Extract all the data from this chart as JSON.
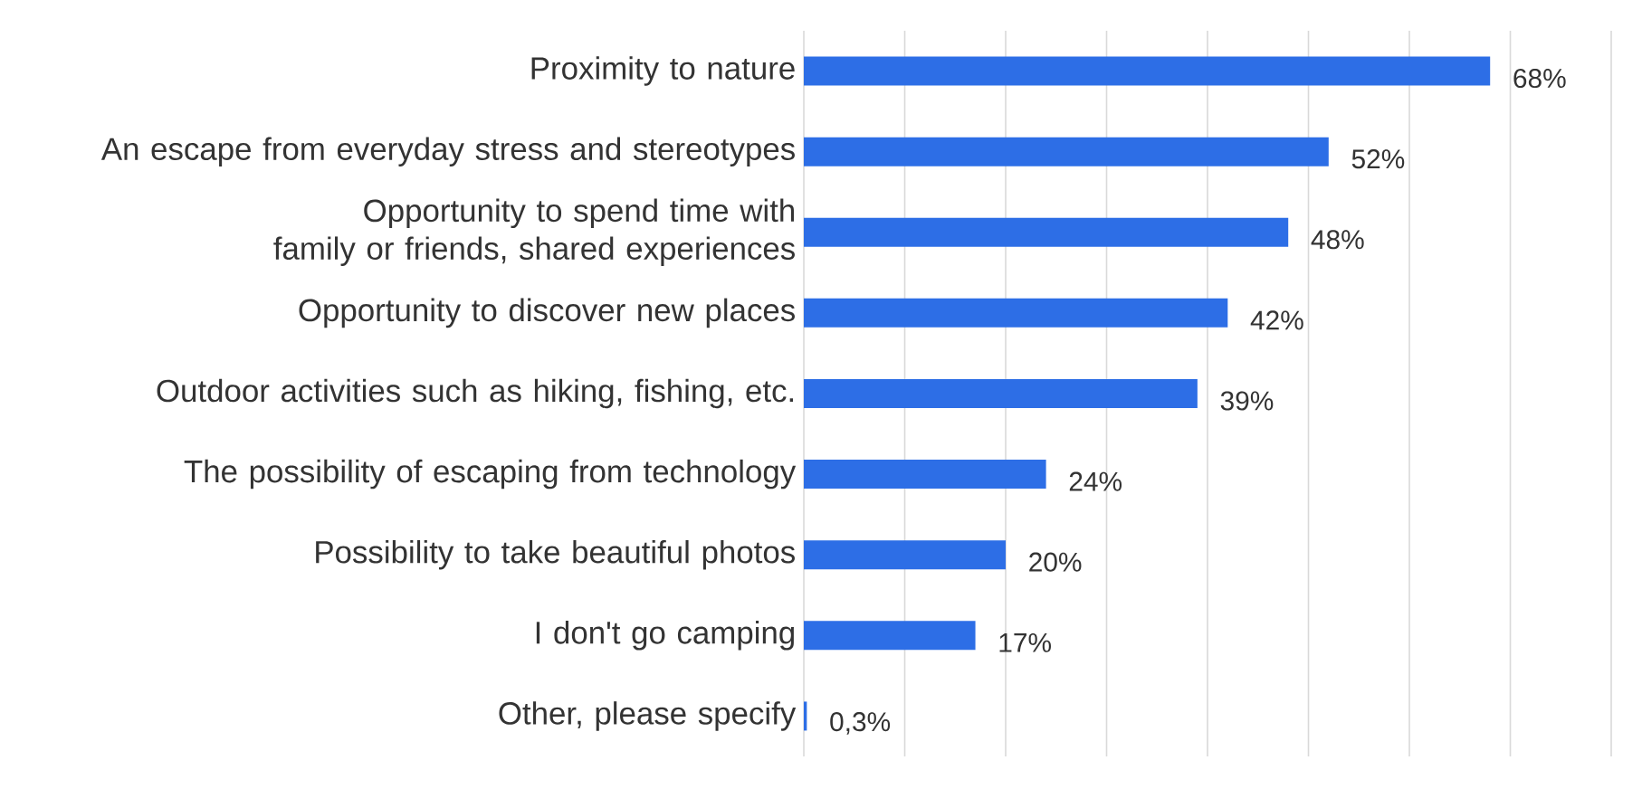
{
  "chart_data": {
    "type": "bar",
    "orientation": "horizontal",
    "categories": [
      "Proximity to nature",
      "An escape from everyday stress and stereotypes",
      "Opportunity to spend time with family or friends, shared experiences",
      "Opportunity to discover new places",
      "Outdoor activities such as hiking, fishing, etc.",
      "The possibility of escaping from technology",
      "Possibility to take beautiful photos",
      "I don't go camping",
      "Other, please specify"
    ],
    "values": [
      68,
      52,
      48,
      42,
      39,
      24,
      20,
      17,
      0.3
    ],
    "value_labels": [
      "68%",
      "52%",
      "48%",
      "42%",
      "39%",
      "24%",
      "20%",
      "17%",
      "0,3%"
    ],
    "color": "#2d6ee6",
    "xlim": [
      0,
      80
    ],
    "xticks": [
      {
        "value": 0,
        "label": null
      },
      {
        "value": 10,
        "label": null
      },
      {
        "value": 20,
        "label": null
      },
      {
        "value": 30,
        "label": null
      },
      {
        "value": 40,
        "label": null
      },
      {
        "value": 50,
        "label": null
      },
      {
        "value": 60,
        "label": null
      },
      {
        "value": 70,
        "label": null
      },
      {
        "value": 80,
        "label": null
      }
    ],
    "tick_labels": "y",
    "grid": "x"
  }
}
